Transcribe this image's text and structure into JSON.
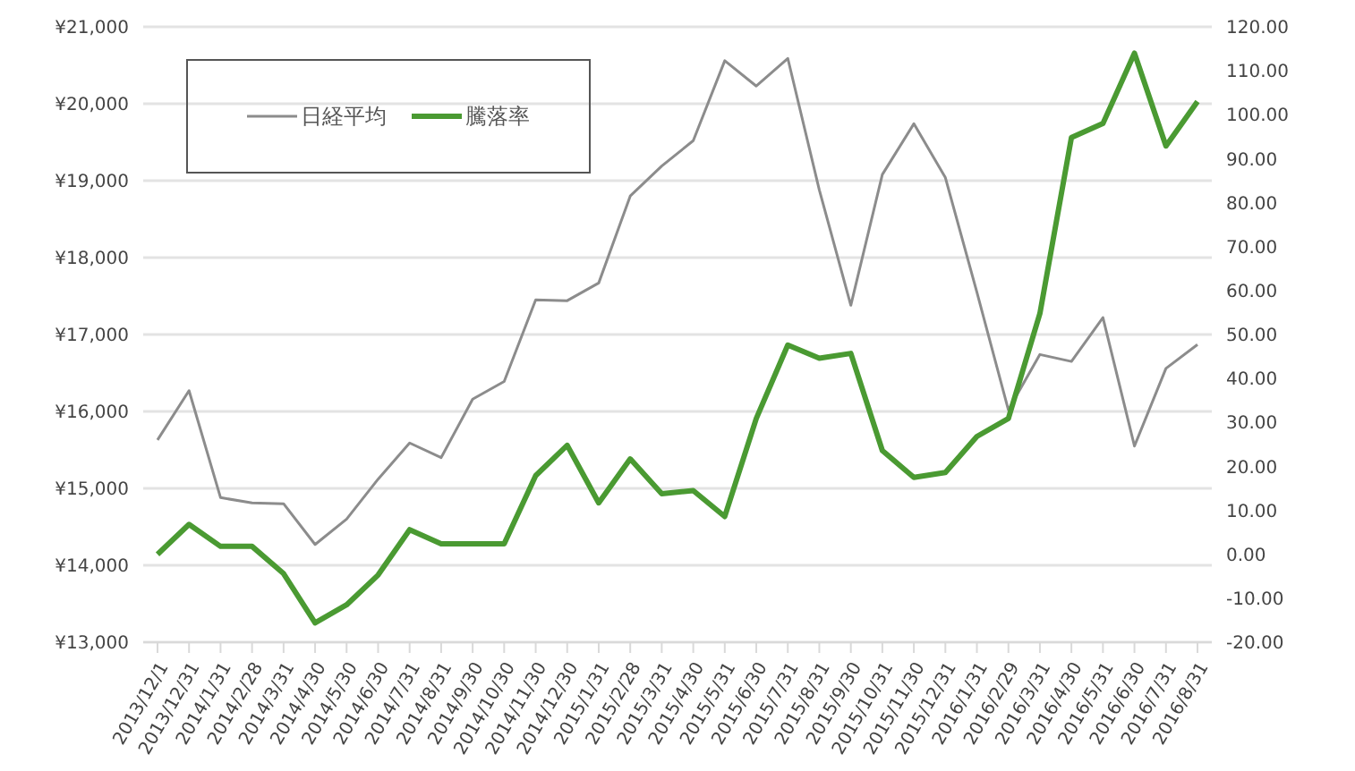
{
  "chart_data": {
    "type": "line",
    "categories": [
      "2013/12/1",
      "2013/12/31",
      "2014/1/31",
      "2014/2/28",
      "2014/3/31",
      "2014/4/30",
      "2014/5/30",
      "2014/6/30",
      "2014/7/31",
      "2014/8/31",
      "2014/9/30",
      "2014/10/30",
      "2014/11/30",
      "2014/12/30",
      "2015/1/31",
      "2015/2/28",
      "2015/3/31",
      "2015/4/30",
      "2015/5/31",
      "2015/6/30",
      "2015/7/31",
      "2015/8/31",
      "2015/9/30",
      "2015/10/31",
      "2015/11/30",
      "2015/12/31",
      "2016/1/31",
      "2016/2/29",
      "2016/3/31",
      "2016/4/30",
      "2016/5/31",
      "2016/6/30",
      "2016/7/31",
      "2016/8/31"
    ],
    "series": [
      {
        "name": "日経平均",
        "color": "#8c8c8c",
        "values": [
          15630,
          16270,
          14880,
          14810,
          14800,
          14270,
          14600,
          15120,
          15590,
          15400,
          16160,
          16390,
          17450,
          17440,
          17670,
          18800,
          19190,
          19520,
          20560,
          20230,
          20590,
          18880,
          17380,
          19080,
          19740,
          19040,
          17550,
          16020,
          16740,
          16650,
          17220,
          15550,
          16560,
          16870
        ]
      },
      {
        "name": "騰落率",
        "color": "#4a9a32",
        "axis": "y2",
        "values": [
          0,
          6.8,
          1.8,
          1.8,
          -4.4,
          -15.6,
          -11.5,
          -4.7,
          5.6,
          2.4,
          2.4,
          2.4,
          17.9,
          24.8,
          11.7,
          21.7,
          13.8,
          14.5,
          8.6,
          30.9,
          47.6,
          44.6,
          45.7,
          23.6,
          17.5,
          18.6,
          26.8,
          30.9,
          54.8,
          94.8,
          98,
          114,
          92.9,
          103
        ]
      }
    ],
    "ylim": [
      13000,
      21000
    ],
    "yticks": [
      {
        "value": 13000,
        "label": "¥13,000"
      },
      {
        "value": 14000,
        "label": "¥14,000"
      },
      {
        "value": 15000,
        "label": "¥15,000"
      },
      {
        "value": 16000,
        "label": "¥16,000"
      },
      {
        "value": 17000,
        "label": "¥17,000"
      },
      {
        "value": 18000,
        "label": "¥18,000"
      },
      {
        "value": 19000,
        "label": "¥19,000"
      },
      {
        "value": 20000,
        "label": "¥20,000"
      },
      {
        "value": 21000,
        "label": "¥21,000"
      }
    ],
    "y2lim": [
      -20,
      120
    ],
    "y2ticks": [
      {
        "value": -20,
        "label": "-20.00"
      },
      {
        "value": -10,
        "label": "-10.00"
      },
      {
        "value": 0,
        "label": "0.00"
      },
      {
        "value": 10,
        "label": "10.00"
      },
      {
        "value": 20,
        "label": "20.00"
      },
      {
        "value": 30,
        "label": "30.00"
      },
      {
        "value": 40,
        "label": "40.00"
      },
      {
        "value": 50,
        "label": "50.00"
      },
      {
        "value": 60,
        "label": "60.00"
      },
      {
        "value": 70,
        "label": "70.00"
      },
      {
        "value": 80,
        "label": "80.00"
      },
      {
        "value": 90,
        "label": "90.00"
      },
      {
        "value": 100,
        "label": "100.00"
      },
      {
        "value": 110,
        "label": "110.00"
      },
      {
        "value": 120,
        "label": "120.00"
      }
    ],
    "grid": "y",
    "legend": "top left",
    "marker": "none",
    "line_style": "solid"
  }
}
